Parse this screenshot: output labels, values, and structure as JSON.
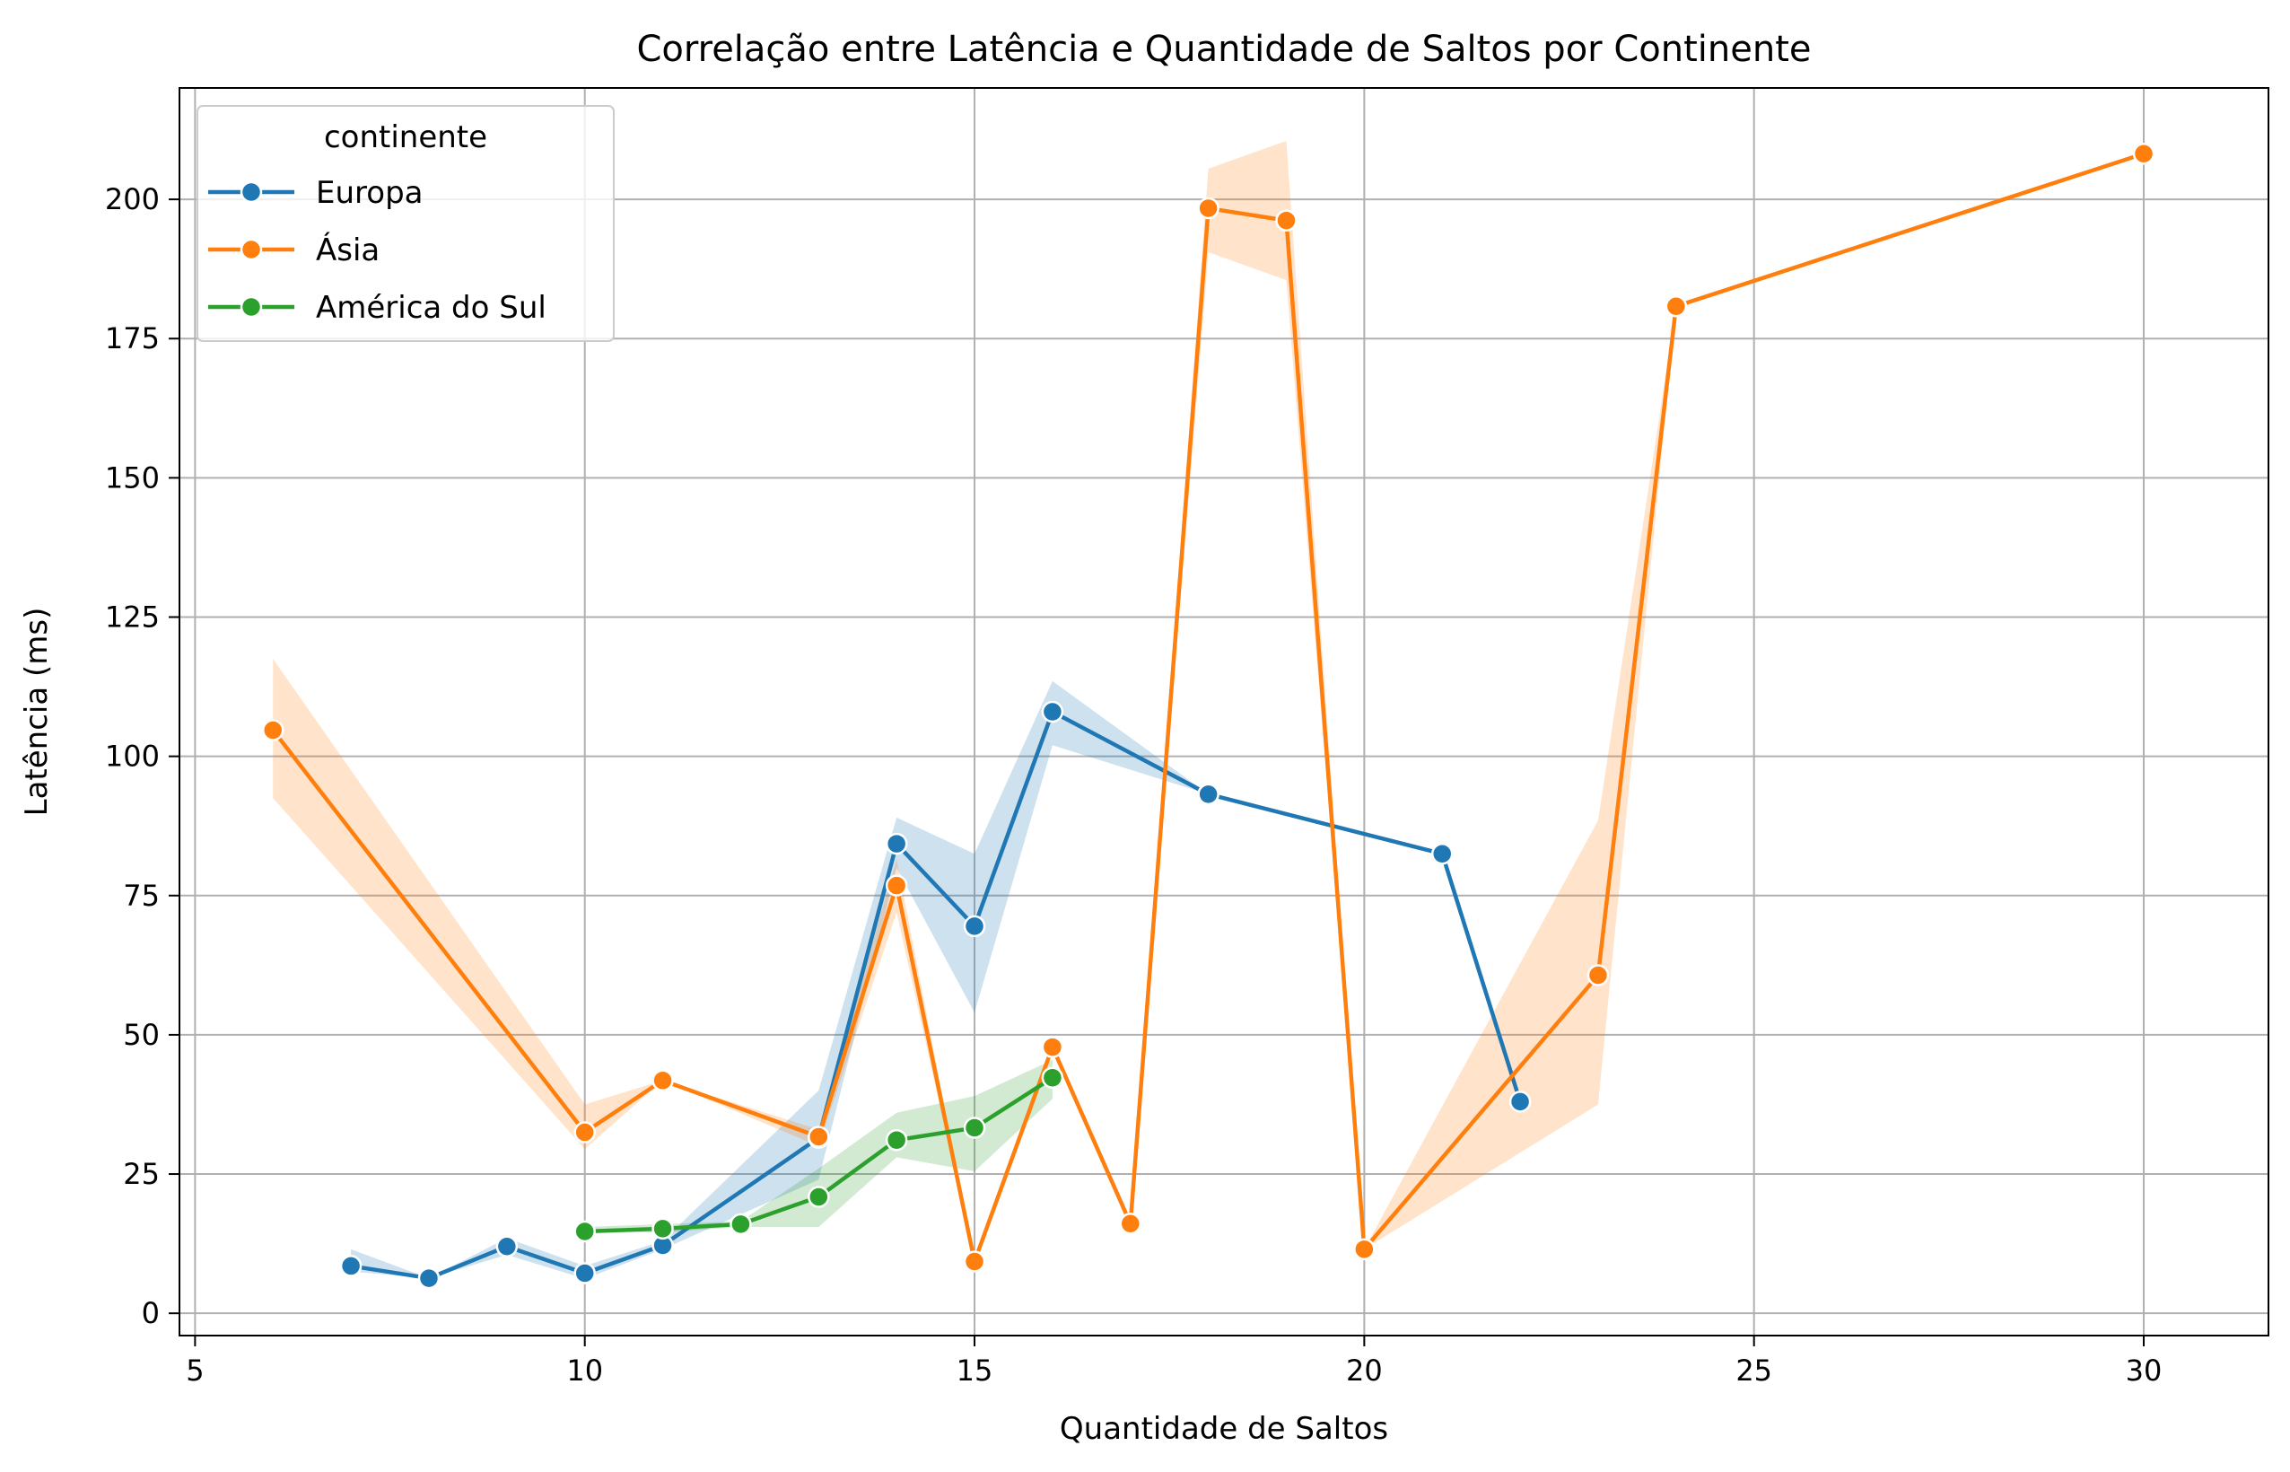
{
  "chart_data": {
    "type": "line",
    "title": "Correlação entre Latência e Quantidade de Saltos por Continente",
    "xlabel": "Quantidade de Saltos",
    "ylabel": "Latência (ms)",
    "xlim": [
      4.8,
      31.6
    ],
    "ylim": [
      -4,
      220
    ],
    "xticks": [
      5,
      10,
      15,
      20,
      25,
      30
    ],
    "yticks": [
      0,
      25,
      50,
      75,
      100,
      125,
      150,
      175,
      200
    ],
    "grid": true,
    "legend": {
      "title": "continente",
      "placement": "top-left"
    },
    "series": [
      {
        "name": "Europa",
        "color": "#1f77b4",
        "x": [
          7,
          8,
          9,
          10,
          11,
          13,
          14,
          15,
          16,
          18,
          21,
          22
        ],
        "y": [
          8.5,
          6.3,
          12,
          7.2,
          12.2,
          31.5,
          84.3,
          69.5,
          108,
          93.2,
          82.5,
          38
        ],
        "band_lower": [
          7.5,
          6.3,
          10.5,
          6.2,
          11.5,
          24,
          80,
          54,
          102,
          93.2,
          82.5,
          38
        ],
        "band_upper": [
          11.5,
          6.3,
          13.5,
          8.5,
          13,
          40,
          89,
          82.5,
          113.5,
          93.2,
          82.5,
          38
        ]
      },
      {
        "name": "Ásia",
        "color": "#ff7f0e",
        "x": [
          6,
          10,
          11,
          13,
          14,
          15,
          16,
          17,
          18,
          19,
          20,
          23,
          24,
          30
        ],
        "y": [
          104.7,
          32.5,
          41.8,
          31.7,
          76.8,
          9.3,
          47.8,
          16.1,
          198.4,
          196.2,
          11.5,
          60.7,
          180.8,
          208.2
        ],
        "band_lower": [
          92.5,
          29.5,
          41.8,
          30,
          72,
          9.3,
          47.8,
          16.1,
          190.5,
          185.5,
          11.5,
          37.5,
          180.8,
          208.2
        ],
        "band_upper": [
          117.5,
          37.5,
          41.8,
          33,
          81.5,
          9.3,
          47.8,
          16.1,
          205.5,
          210.5,
          11.5,
          88.5,
          180.8,
          208.2
        ]
      },
      {
        "name": "América do Sul",
        "color": "#2ca02c",
        "x": [
          10,
          11,
          12,
          13,
          14,
          15,
          16
        ],
        "y": [
          14.7,
          15.2,
          16,
          20.9,
          31.1,
          33.3,
          42.3
        ],
        "band_lower": [
          14.7,
          14.5,
          15.5,
          15.5,
          28,
          25.5,
          38.5
        ],
        "band_upper": [
          15.5,
          16,
          16.5,
          26,
          36,
          39,
          45.5
        ]
      }
    ]
  }
}
